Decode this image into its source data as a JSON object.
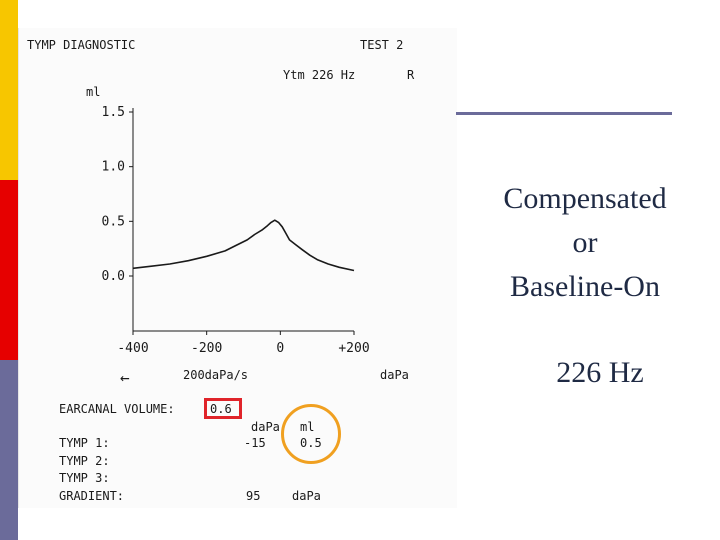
{
  "colors": {
    "bar_yellow": "#f7c600",
    "bar_red": "#e60000",
    "bar_purple": "#6b6b9a",
    "highlight_box": "#e0242a",
    "highlight_circle": "#f0a020",
    "slide_text": "#1f2a44"
  },
  "printout": {
    "title": "TYMP DIAGNOSTIC",
    "test": "TEST 2",
    "probe": "Ytm 226 Hz",
    "ear": "R",
    "rate_label": "200daPa/s",
    "x_unit": "daPa",
    "earcanal_label": "EARCANAL VOLUME:",
    "earcanal_value": "0.6",
    "col_dapa": "daPa",
    "col_ml": "ml",
    "tymp1_label": "TYMP 1:",
    "tymp2_label": "TYMP 2:",
    "tymp3_label": "TYMP 3:",
    "gradient_label": "GRADIENT:",
    "tymp1_dapa": "-15",
    "tymp1_ml": "0.5",
    "gradient_value": "95",
    "gradient_unit": "daPa",
    "arrow_icon": "left-arrow-icon"
  },
  "slide": {
    "heading_line1": "Compensated",
    "heading_line2": "or",
    "heading_line3": "Baseline-On",
    "frequency": "226 Hz"
  },
  "chart_data": {
    "type": "line",
    "title": "",
    "xlabel": "daPa",
    "ylabel": "ml",
    "xlim": [
      -400,
      200
    ],
    "ylim": [
      0,
      1.5
    ],
    "x_ticks": [
      -400,
      -200,
      0,
      200
    ],
    "x_tick_labels": [
      "-400",
      "-200",
      "0",
      "+200"
    ],
    "y_ticks": [
      0,
      0.5,
      1.0,
      1.5
    ],
    "y_tick_labels": [
      "0.0",
      "0.5",
      "1.0",
      "1.5"
    ],
    "grid": false,
    "series": [
      {
        "x": [
          -400,
          -350,
          -300,
          -250,
          -200,
          -150,
          -120,
          -90,
          -70,
          -50,
          -35,
          -25,
          -15,
          -5,
          5,
          15,
          25,
          40,
          60,
          80,
          100,
          130,
          160,
          200
        ],
        "y": [
          0.07,
          0.09,
          0.11,
          0.14,
          0.18,
          0.23,
          0.28,
          0.33,
          0.38,
          0.42,
          0.46,
          0.49,
          0.51,
          0.49,
          0.45,
          0.39,
          0.33,
          0.29,
          0.24,
          0.19,
          0.15,
          0.11,
          0.08,
          0.05
        ]
      }
    ]
  }
}
